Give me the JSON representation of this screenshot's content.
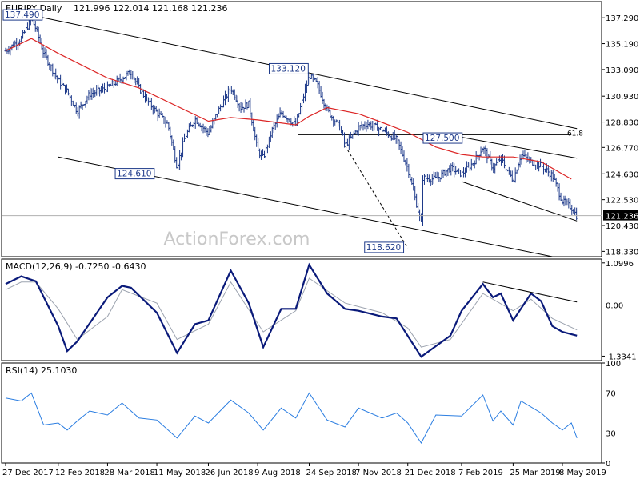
{
  "header": {
    "symbol": "EURJPY,Daily",
    "ohlc": "121.996 122.014 121.168 121.236"
  },
  "watermark": "ActionForex.com",
  "colors": {
    "price_bar": "#1e3a8a",
    "ma": "#dc2626",
    "line": "#000000",
    "macd": "#0a1a7a",
    "signal": "#9ca3af",
    "rsi": "#2a7de1",
    "axis_text": "#000000",
    "grid": "#b0b0b0",
    "watermark": "#c8c8c8"
  },
  "chart_data": [
    {
      "type": "candlestick",
      "title": "EURJPY,Daily",
      "subtitle": "121.996 122.014 121.168 121.236",
      "y_ticks": [
        "137.290",
        "135.190",
        "133.090",
        "130.930",
        "128.830",
        "126.770",
        "124.630",
        "122.530",
        "120.430",
        "118.330"
      ],
      "ylim": [
        117.9,
        138.6
      ],
      "last_price": "121.236",
      "annotations": [
        {
          "label": "137.490",
          "x": "27 Dec 2017",
          "y": 137.49
        },
        {
          "label": "133.120",
          "x": "24 Sep 2018",
          "y": 133.12
        },
        {
          "label": "124.610",
          "x": "11 May 2018",
          "y": 124.61
        },
        {
          "label": "127.500",
          "x": "7 Feb 2019",
          "y": 127.5
        },
        {
          "label": "118.620",
          "x": "21 Dec 2018",
          "y": 118.62
        },
        {
          "label": "61.8",
          "x": "8 May 2019",
          "y": 127.6
        }
      ],
      "price_path": [
        [
          "27 Dec 2017",
          134.6
        ],
        [
          "10 Jan 2018",
          135.6
        ],
        [
          "19 Jan 2018",
          137.2
        ],
        [
          "23 Jan 2018",
          136.4
        ],
        [
          "30 Jan 2018",
          134.4
        ],
        [
          "12 Feb 2018",
          132.2
        ],
        [
          "20 Feb 2018",
          131.3
        ],
        [
          "1 Mar 2018",
          129.7
        ],
        [
          "12 Mar 2018",
          131.1
        ],
        [
          "28 Mar 2018",
          131.6
        ],
        [
          "10 Apr 2018",
          132.4
        ],
        [
          "18 Apr 2018",
          132.9
        ],
        [
          "25 Apr 2018",
          131.6
        ],
        [
          "3 May 2018",
          130.5
        ],
        [
          "11 May 2018",
          129.6
        ],
        [
          "21 May 2018",
          128.6
        ],
        [
          "29 May 2018",
          125.2
        ],
        [
          "5 Jun 2018",
          127.6
        ],
        [
          "14 Jun 2018",
          129.1
        ],
        [
          "26 Jun 2018",
          127.9
        ],
        [
          "4 Jul 2018",
          129.6
        ],
        [
          "16 Jul 2018",
          131.6
        ],
        [
          "25 Jul 2018",
          130.0
        ],
        [
          "1 Aug 2018",
          130.3
        ],
        [
          "9 Aug 2018",
          126.5
        ],
        [
          "14 Aug 2018",
          125.9
        ],
        [
          "22 Aug 2018",
          128.2
        ],
        [
          "30 Aug 2018",
          129.6
        ],
        [
          "12 Sep 2018",
          128.6
        ],
        [
          "24 Sep 2018",
          132.6
        ],
        [
          "1 Oct 2018",
          131.9
        ],
        [
          "10 Oct 2018",
          129.8
        ],
        [
          "22 Oct 2018",
          128.3
        ],
        [
          "26 Oct 2018",
          126.9
        ],
        [
          "7 Nov 2018",
          128.4
        ],
        [
          "15 Nov 2018",
          128.7
        ],
        [
          "28 Nov 2018",
          128.2
        ],
        [
          "11 Dec 2018",
          127.4
        ],
        [
          "21 Dec 2018",
          125.1
        ],
        [
          "2 Jan 2019",
          120.6
        ],
        [
          "3 Jan 2019",
          124.3
        ],
        [
          "15 Jan 2019",
          124.2
        ],
        [
          "28 Jan 2019",
          125.1
        ],
        [
          "7 Feb 2019",
          124.6
        ],
        [
          "18 Feb 2019",
          125.6
        ],
        [
          "26 Feb 2019",
          126.8
        ],
        [
          "7 Mar 2019",
          125.1
        ],
        [
          "14 Mar 2019",
          125.9
        ],
        [
          "25 Mar 2019",
          124.1
        ],
        [
          "1 Apr 2019",
          126.2
        ],
        [
          "10 Apr 2019",
          125.6
        ],
        [
          "19 Apr 2019",
          125.3
        ],
        [
          "29 Apr 2019",
          124.5
        ],
        [
          "8 May 2019",
          122.4
        ],
        [
          "16 May 2019",
          121.9
        ],
        [
          "21 May 2019",
          121.2
        ]
      ],
      "moving_average": [
        [
          "27 Dec 2017",
          134.6
        ],
        [
          "19 Jan 2018",
          135.6
        ],
        [
          "12 Feb 2018",
          134.4
        ],
        [
          "28 Mar 2018",
          132.4
        ],
        [
          "25 Apr 2018",
          131.6
        ],
        [
          "11 May 2018",
          130.9
        ],
        [
          "26 Jun 2018",
          128.9
        ],
        [
          "16 Jul 2018",
          129.2
        ],
        [
          "9 Aug 2018",
          129.0
        ],
        [
          "12 Sep 2018",
          128.6
        ],
        [
          "24 Sep 2018",
          129.3
        ],
        [
          "10 Oct 2018",
          130.0
        ],
        [
          "7 Nov 2018",
          129.5
        ],
        [
          "28 Nov 2018",
          128.8
        ],
        [
          "21 Dec 2018",
          128.0
        ],
        [
          "15 Jan 2019",
          126.8
        ],
        [
          "7 Feb 2019",
          126.2
        ],
        [
          "26 Feb 2019",
          126.0
        ],
        [
          "25 Mar 2019",
          126.0
        ],
        [
          "19 Apr 2019",
          125.6
        ],
        [
          "16 May 2019",
          124.2
        ]
      ],
      "trend_lines": [
        [
          [
            "19 Jan 2018",
            137.5
          ],
          [
            "21 May 2019",
            128.3
          ]
        ],
        [
          [
            "12 Feb 2018",
            126.0
          ],
          [
            "21 May 2019",
            117.5
          ]
        ],
        [
          [
            "14 Sep 2018",
            127.8
          ],
          [
            "16 May 2019",
            127.8
          ]
        ],
        [
          [
            "7 Feb 2019",
            127.6
          ],
          [
            "21 May 2019",
            125.9
          ]
        ],
        [
          [
            "7 Feb 2019",
            124.0
          ],
          [
            "21 May 2019",
            120.8
          ]
        ],
        [
          [
            "26 Oct 2018",
            126.9
          ],
          [
            "21 Dec 2018",
            118.6
          ]
        ]
      ]
    },
    {
      "type": "line",
      "title": "MACD(12,26,9) -0.7250 -0.6430",
      "y_ticks": [
        "1.0996",
        "0.00",
        "-1.3341"
      ],
      "ylim": [
        -1.45,
        1.2
      ],
      "series": [
        {
          "name": "MACD",
          "points": [
            [
              "27 Dec 2017",
              0.55
            ],
            [
              "10 Jan 2018",
              0.75
            ],
            [
              "23 Jan 2018",
              0.62
            ],
            [
              "12 Feb 2018",
              -0.55
            ],
            [
              "20 Feb 2018",
              -1.2
            ],
            [
              "1 Mar 2018",
              -0.95
            ],
            [
              "28 Mar 2018",
              0.2
            ],
            [
              "10 Apr 2018",
              0.5
            ],
            [
              "18 Apr 2018",
              0.45
            ],
            [
              "11 May 2018",
              -0.2
            ],
            [
              "29 May 2018",
              -1.25
            ],
            [
              "14 Jun 2018",
              -0.5
            ],
            [
              "26 Jun 2018",
              -0.4
            ],
            [
              "16 Jul 2018",
              0.9
            ],
            [
              "1 Aug 2018",
              0.05
            ],
            [
              "14 Aug 2018",
              -1.1
            ],
            [
              "30 Aug 2018",
              -0.1
            ],
            [
              "12 Sep 2018",
              -0.1
            ],
            [
              "24 Sep 2018",
              1.05
            ],
            [
              "10 Oct 2018",
              0.3
            ],
            [
              "26 Oct 2018",
              -0.1
            ],
            [
              "7 Nov 2018",
              -0.15
            ],
            [
              "28 Nov 2018",
              -0.3
            ],
            [
              "11 Dec 2018",
              -0.35
            ],
            [
              "2 Jan 2019",
              -1.35
            ],
            [
              "28 Jan 2019",
              -0.8
            ],
            [
              "7 Feb 2019",
              -0.15
            ],
            [
              "26 Feb 2019",
              0.55
            ],
            [
              "7 Mar 2019",
              0.2
            ],
            [
              "14 Mar 2019",
              0.3
            ],
            [
              "25 Mar 2019",
              -0.4
            ],
            [
              "10 Apr 2019",
              0.3
            ],
            [
              "19 Apr 2019",
              0.1
            ],
            [
              "29 Apr 2019",
              -0.55
            ],
            [
              "8 May 2019",
              -0.7
            ],
            [
              "21 May 2019",
              -0.8
            ]
          ]
        },
        {
          "name": "Signal",
          "points": [
            [
              "27 Dec 2017",
              0.4
            ],
            [
              "10 Jan 2018",
              0.6
            ],
            [
              "23 Jan 2018",
              0.6
            ],
            [
              "12 Feb 2018",
              -0.1
            ],
            [
              "1 Mar 2018",
              -0.9
            ],
            [
              "28 Mar 2018",
              -0.3
            ],
            [
              "10 Apr 2018",
              0.4
            ],
            [
              "11 May 2018",
              0.05
            ],
            [
              "29 May 2018",
              -0.9
            ],
            [
              "26 Jun 2018",
              -0.5
            ],
            [
              "16 Jul 2018",
              0.6
            ],
            [
              "14 Aug 2018",
              -0.7
            ],
            [
              "12 Sep 2018",
              -0.15
            ],
            [
              "24 Sep 2018",
              0.7
            ],
            [
              "26 Oct 2018",
              0.05
            ],
            [
              "28 Nov 2018",
              -0.2
            ],
            [
              "21 Dec 2018",
              -0.6
            ],
            [
              "2 Jan 2019",
              -1.1
            ],
            [
              "28 Jan 2019",
              -0.9
            ],
            [
              "26 Feb 2019",
              0.3
            ],
            [
              "25 Mar 2019",
              -0.15
            ],
            [
              "10 Apr 2019",
              0.15
            ],
            [
              "29 Apr 2019",
              -0.35
            ],
            [
              "21 May 2019",
              -0.65
            ]
          ]
        }
      ],
      "trend_lines": [
        [
          [
            "26 Feb 2019",
            0.6
          ],
          [
            "21 May 2019",
            0.08
          ]
        ]
      ]
    },
    {
      "type": "line",
      "title": "RSI(14) 25.1030",
      "y_ticks": [
        "100",
        "70",
        "30",
        "0"
      ],
      "ylim": [
        0,
        100
      ],
      "series": [
        {
          "name": "RSI",
          "points": [
            [
              "27 Dec 2017",
              65
            ],
            [
              "10 Jan 2018",
              62
            ],
            [
              "19 Jan 2018",
              70
            ],
            [
              "30 Jan 2018",
              38
            ],
            [
              "12 Feb 2018",
              40
            ],
            [
              "20 Feb 2018",
              33
            ],
            [
              "1 Mar 2018",
              42
            ],
            [
              "12 Mar 2018",
              52
            ],
            [
              "28 Mar 2018",
              48
            ],
            [
              "10 Apr 2018",
              60
            ],
            [
              "25 Apr 2018",
              45
            ],
            [
              "11 May 2018",
              43
            ],
            [
              "29 May 2018",
              25
            ],
            [
              "14 Jun 2018",
              47
            ],
            [
              "26 Jun 2018",
              40
            ],
            [
              "16 Jul 2018",
              63
            ],
            [
              "1 Aug 2018",
              50
            ],
            [
              "14 Aug 2018",
              33
            ],
            [
              "30 Aug 2018",
              55
            ],
            [
              "12 Sep 2018",
              45
            ],
            [
              "24 Sep 2018",
              70
            ],
            [
              "10 Oct 2018",
              43
            ],
            [
              "26 Oct 2018",
              36
            ],
            [
              "7 Nov 2018",
              55
            ],
            [
              "28 Nov 2018",
              45
            ],
            [
              "11 Dec 2018",
              50
            ],
            [
              "21 Dec 2018",
              40
            ],
            [
              "2 Jan 2019",
              20
            ],
            [
              "15 Jan 2019",
              48
            ],
            [
              "7 Feb 2019",
              47
            ],
            [
              "26 Feb 2019",
              68
            ],
            [
              "7 Mar 2019",
              42
            ],
            [
              "14 Mar 2019",
              52
            ],
            [
              "25 Mar 2019",
              38
            ],
            [
              "1 Apr 2019",
              62
            ],
            [
              "19 Apr 2019",
              50
            ],
            [
              "29 Apr 2019",
              40
            ],
            [
              "8 May 2019",
              33
            ],
            [
              "16 May 2019",
              40
            ],
            [
              "21 May 2019",
              25
            ]
          ]
        }
      ]
    }
  ],
  "x_axis": {
    "labels": [
      "27 Dec 2017",
      "12 Feb 2018",
      "28 Mar 2018",
      "11 May 2018",
      "26 Jun 2018",
      "9 Aug 2018",
      "24 Sep 2018",
      "7 Nov 2018",
      "21 Dec 2018",
      "7 Feb 2019",
      "25 Mar 2019",
      "8 May 2019"
    ]
  }
}
